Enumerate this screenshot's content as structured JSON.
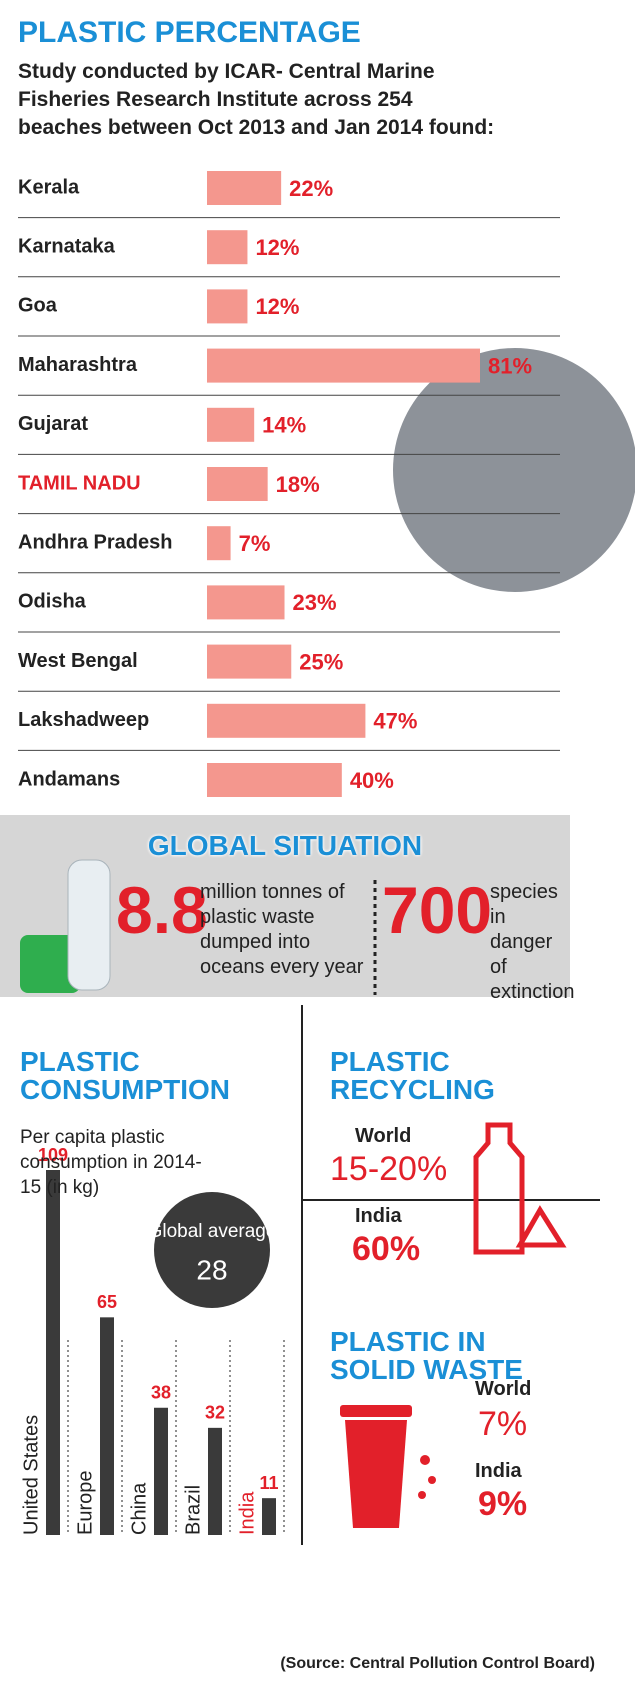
{
  "chart_data": [
    {
      "type": "barh",
      "title": "PLASTIC PERCENTAGE",
      "subtitle": "Study conducted by ICAR- Central Marine Fisheries Research Institute across 254 beaches between Oct 2013 and Jan 2014 found:",
      "categories": [
        "Kerala",
        "Karnataka",
        "Goa",
        "Maharashtra",
        "Gujarat",
        "TAMIL NADU",
        "Andhra Pradesh",
        "Odisha",
        "West Bengal",
        "Lakshadweep",
        "Andamans"
      ],
      "values": [
        22,
        12,
        12,
        81,
        14,
        18,
        7,
        23,
        25,
        47,
        40
      ],
      "value_labels": [
        "22%",
        "12%",
        "12%",
        "81%",
        "14%",
        "18%",
        "7%",
        "23%",
        "25%",
        "47%",
        "40%"
      ],
      "color": "#f4978e",
      "label_color": "#e2202a",
      "highlight_index": 5,
      "xlim": [
        0,
        81
      ]
    },
    {
      "type": "bar",
      "title": "PLASTIC CONSUMPTION",
      "subtitle": "Per capita plastic consumption in 2014-15 (in kg)",
      "categories": [
        "United States",
        "Europe",
        "China",
        "Brazil",
        "India"
      ],
      "values": [
        109,
        65,
        38,
        32,
        11
      ],
      "color": "#3a3a3a",
      "label_color": "#e2202a",
      "highlight_index": 4,
      "ylim": [
        0,
        109
      ],
      "reference": {
        "label": "Global average",
        "value": 28
      }
    }
  ],
  "global_situation": {
    "title": "GLOBAL SITUATION",
    "stats": [
      {
        "value": 8.8,
        "text": "million tonnes of plastic waste dumped into oceans every year"
      },
      {
        "value": 700,
        "text": "species in danger of extinction"
      }
    ]
  },
  "recycling": {
    "title": "PLASTIC RECYCLING",
    "items": [
      {
        "label": "World",
        "value": "15-20%"
      },
      {
        "label": "India",
        "value": "60%"
      }
    ]
  },
  "solid_waste": {
    "title": "PLASTIC IN SOLID WASTE",
    "items": [
      {
        "label": "World",
        "value": "7%"
      },
      {
        "label": "India",
        "value": "9%"
      }
    ]
  },
  "source": "(Source: Central Pollution Control Board)"
}
